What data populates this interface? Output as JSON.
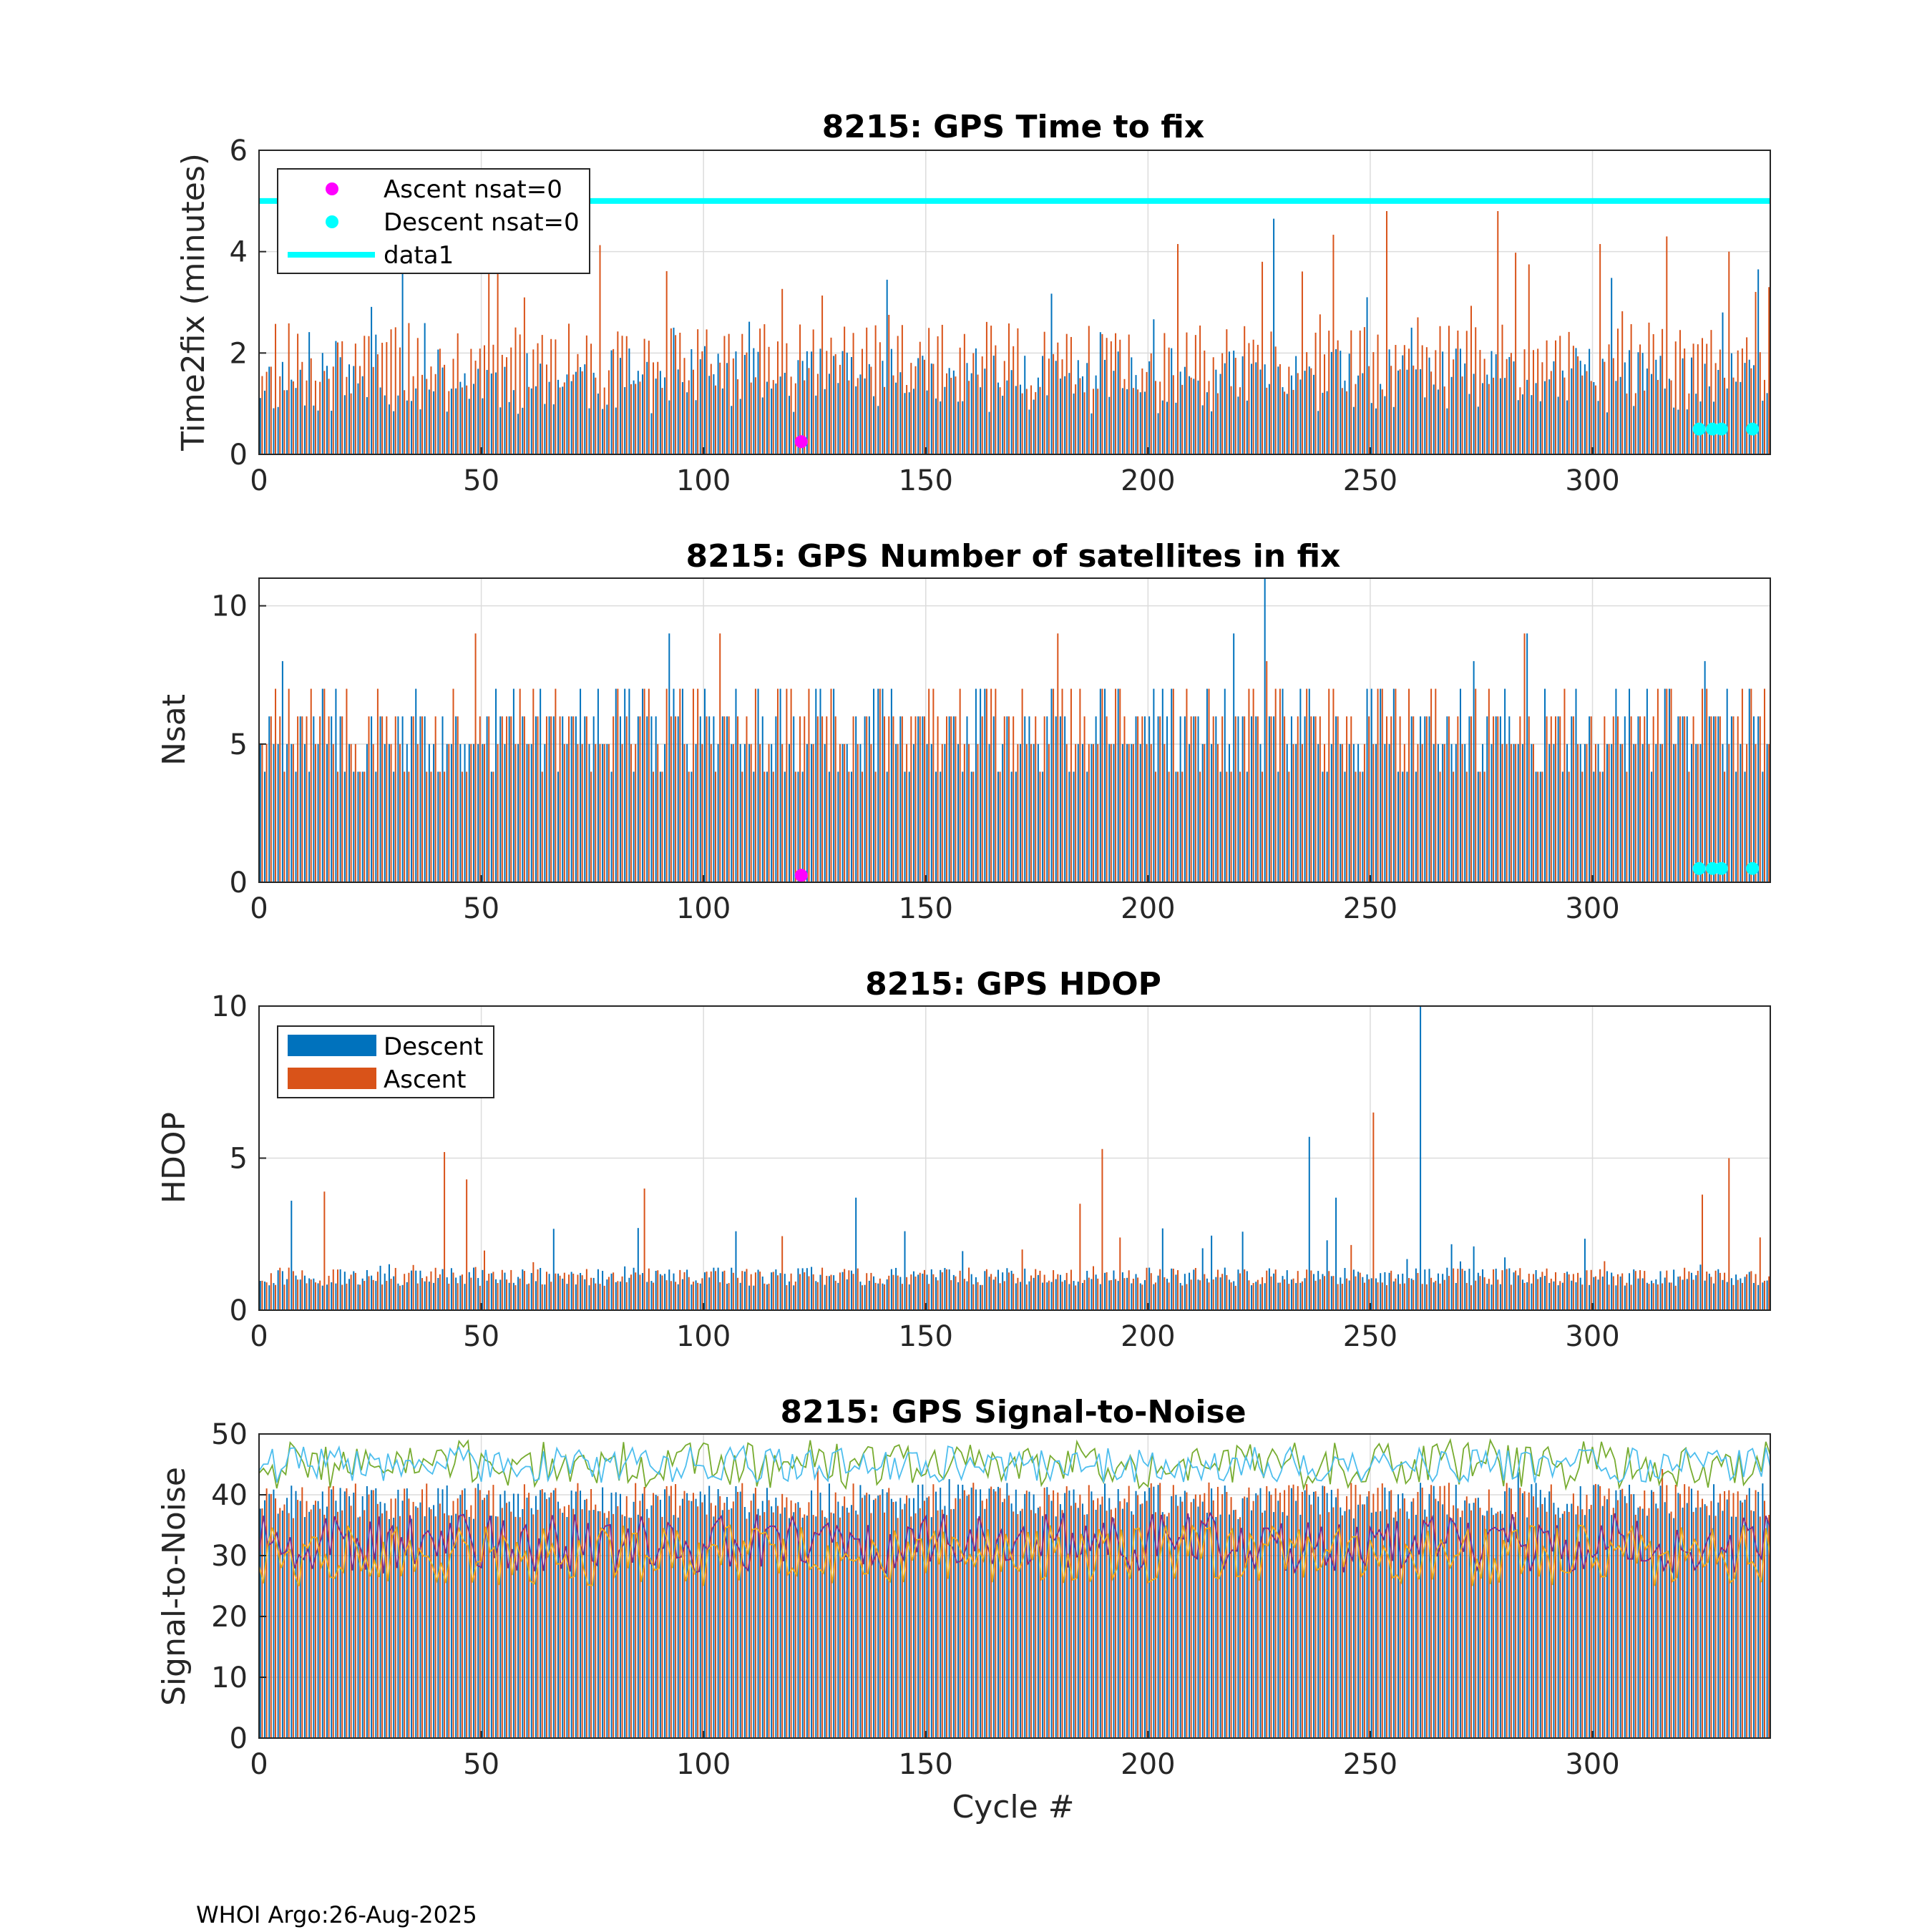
{
  "footer": "WHOI Argo:26-Aug-2025",
  "colors": {
    "descent": "#0072BD",
    "ascent": "#D95319",
    "threshold": "#00FFFF",
    "ascent_nsat0": "#FF00FF",
    "descent_nsat0": "#00FFFF",
    "snr_lines": [
      "#77AC30",
      "#4DBEEE",
      "#7E2F8E",
      "#EDB120"
    ]
  },
  "chart_data": [
    {
      "type": "bar",
      "title": "8215: GPS Time to fix",
      "xlabel": "",
      "ylabel": "Time2fix (minutes)",
      "xlim": [
        0,
        340
      ],
      "ylim": [
        0,
        6
      ],
      "xticks": [
        "0",
        "50",
        "100",
        "150",
        "200",
        "250",
        "300"
      ],
      "yticks": [
        "0",
        "2",
        "4",
        "6"
      ],
      "grid": true,
      "legend": {
        "placement": "top-left",
        "entries": [
          "Ascent nsat=0",
          "Descent nsat=0",
          "data1"
        ]
      },
      "threshold": {
        "name": "data1",
        "y": 5
      },
      "series": [
        {
          "name": "Descent",
          "seed": 11,
          "base": 0.8,
          "spread": 1.3,
          "spike_rate": 0.05,
          "spike": 2.0,
          "peaks": [
            [
              32,
              3.6
            ],
            [
              93,
              2.5
            ],
            [
              228,
              4.65
            ],
            [
              249,
              3.1
            ],
            [
              259,
              2.5
            ],
            [
              329,
              2.8
            ],
            [
              337,
              3.65
            ]
          ]
        },
        {
          "name": "Ascent",
          "seed": 27,
          "base": 1.2,
          "spread": 1.4,
          "spike_rate": 0.08,
          "spike": 2.0,
          "peaks": [
            [
              51,
              3.85
            ],
            [
              53,
              3.7
            ],
            [
              206,
              4.15
            ],
            [
              225,
              3.8
            ],
            [
              253,
              4.8
            ],
            [
              278,
              4.8
            ],
            [
              301,
              4.15
            ],
            [
              316,
              4.3
            ],
            [
              330,
              4.0
            ],
            [
              339,
              3.3
            ]
          ]
        }
      ],
      "markers": [
        {
          "name": "Ascent nsat=0",
          "color": "ascent_nsat0",
          "x": [
            122
          ],
          "y": [
            0.25
          ]
        },
        {
          "name": "Descent nsat=0",
          "color": "descent_nsat0",
          "x": [
            324,
            327,
            329,
            336
          ],
          "y": [
            0.5,
            0.5,
            0.5,
            0.5
          ]
        }
      ]
    },
    {
      "type": "bar",
      "title": "8215: GPS Number of satellites in fix",
      "xlabel": "",
      "ylabel": "Nsat",
      "xlim": [
        0,
        340
      ],
      "ylim": [
        0,
        11
      ],
      "xticks": [
        "0",
        "50",
        "100",
        "150",
        "200",
        "250",
        "300"
      ],
      "yticks": [
        "0",
        "5",
        "10"
      ],
      "grid": true,
      "integer": true,
      "series": [
        {
          "name": "Descent",
          "seed": 53,
          "base": 4,
          "spread": 3,
          "spike_rate": 0.04,
          "spike": 2,
          "peaks": [
            [
              5,
              8
            ],
            [
              92,
              9
            ],
            [
              226,
              11
            ],
            [
              285,
              9
            ],
            [
              325,
              8
            ]
          ]
        },
        {
          "name": "Ascent",
          "seed": 71,
          "base": 4,
          "spread": 3,
          "spike_rate": 0.05,
          "spike": 2,
          "peaks": [
            [
              48,
              9
            ],
            [
              103,
              9
            ],
            [
              179,
              9
            ],
            [
              226,
              8
            ],
            [
              284,
              9
            ]
          ]
        }
      ],
      "markers": [
        {
          "name": "Ascent nsat=0",
          "color": "ascent_nsat0",
          "x": [
            122
          ],
          "y": [
            0.25
          ]
        },
        {
          "name": "Descent nsat=0",
          "color": "descent_nsat0",
          "x": [
            324,
            327,
            329,
            336
          ],
          "y": [
            0.5,
            0.5,
            0.5,
            0.5
          ]
        }
      ]
    },
    {
      "type": "bar",
      "title": "8215: GPS HDOP",
      "xlabel": "",
      "ylabel": "HDOP",
      "xlim": [
        0,
        340
      ],
      "ylim": [
        0,
        10
      ],
      "xticks": [
        "0",
        "50",
        "100",
        "150",
        "200",
        "250",
        "300"
      ],
      "yticks": [
        "0",
        "5",
        "10"
      ],
      "grid": true,
      "legend": {
        "placement": "top-left",
        "entries": [
          "Descent",
          "Ascent"
        ]
      },
      "series": [
        {
          "name": "Descent",
          "seed": 97,
          "base": 0.8,
          "spread": 0.6,
          "spike_rate": 0.06,
          "spike": 1.5,
          "peaks": [
            [
              7,
              3.6
            ],
            [
              236,
              5.7
            ],
            [
              261,
              10
            ],
            [
              242,
              3.7
            ],
            [
              134,
              3.7
            ]
          ]
        },
        {
          "name": "Ascent",
          "seed": 113,
          "base": 0.8,
          "spread": 0.6,
          "spike_rate": 0.07,
          "spike": 1.6,
          "peaks": [
            [
              14,
              3.9
            ],
            [
              41,
              5.2
            ],
            [
              46,
              4.3
            ],
            [
              86,
              4.0
            ],
            [
              189,
              5.3
            ],
            [
              250,
              6.5
            ],
            [
              330,
              5.0
            ],
            [
              324,
              3.8
            ],
            [
              184,
              3.5
            ]
          ]
        }
      ]
    },
    {
      "type": "bar+line",
      "title": "8215: GPS Signal-to-Noise",
      "xlabel": "Cycle #",
      "ylabel": "Signal-to-Noise",
      "xlim": [
        0,
        340
      ],
      "ylim": [
        0,
        50
      ],
      "xticks": [
        "0",
        "50",
        "100",
        "150",
        "200",
        "250",
        "300"
      ],
      "yticks": [
        "0",
        "10",
        "20",
        "30",
        "40",
        "50"
      ],
      "grid": true,
      "series": [
        {
          "name": "Descent",
          "seed": 131,
          "base": 36,
          "spread": 6,
          "spike_rate": 0.02,
          "spike": 4,
          "peaks": []
        },
        {
          "name": "Ascent",
          "seed": 149,
          "base": 36,
          "spread": 6,
          "spike_rate": 0.02,
          "spike": 4,
          "peaks": []
        }
      ],
      "lines": [
        {
          "name": "snr-green",
          "seed": 211,
          "mean": 45,
          "amp": 4,
          "color": 0
        },
        {
          "name": "snr-lightblue",
          "seed": 223,
          "mean": 45,
          "amp": 3,
          "color": 1
        },
        {
          "name": "snr-purple",
          "seed": 239,
          "mean": 32,
          "amp": 5,
          "color": 2
        },
        {
          "name": "snr-yellow",
          "seed": 251,
          "mean": 30,
          "amp": 5,
          "color": 3
        }
      ]
    }
  ]
}
